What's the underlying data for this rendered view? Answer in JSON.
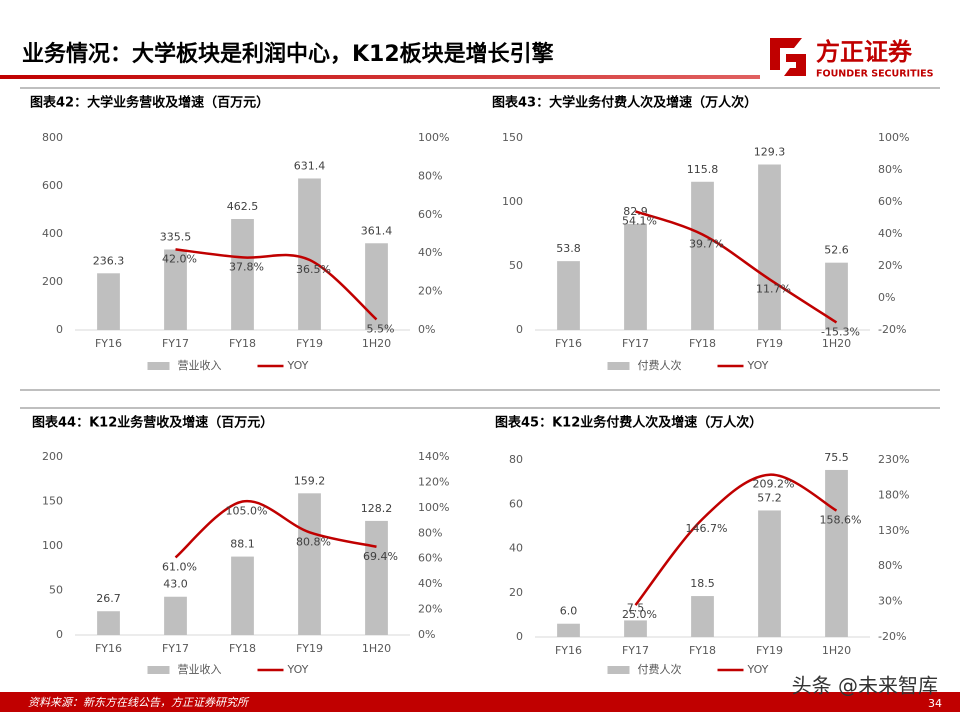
{
  "header": {
    "title": "业务情况：大学板块是利润中心，K12板块是增长引擎",
    "logo_cn": "方正证券",
    "logo_en": "FOUNDER SECURITIES"
  },
  "footer": {
    "source": "资料来源：新东方在线公告，方正证券研究所",
    "page": "34"
  },
  "watermark": "头条 @未来智库",
  "chart_data": [
    {
      "type": "bar",
      "title": "图表42：大学业务营收及增速（百万元）",
      "categories": [
        "FY16",
        "FY17",
        "FY18",
        "FY19",
        "1H20"
      ],
      "series": [
        {
          "name": "营业收入",
          "type": "bar",
          "color": "#bfbfbf",
          "values": [
            236.3,
            335.5,
            462.5,
            631.4,
            361.4
          ]
        },
        {
          "name": "YOY",
          "type": "line",
          "axis": "y2",
          "color": "#c00000",
          "values": [
            null,
            42.0,
            37.8,
            36.5,
            5.5
          ],
          "value_labels": [
            null,
            "42.0%",
            "37.8%",
            "36.5%",
            "5.5%"
          ]
        }
      ],
      "ylim": [
        0,
        800
      ],
      "yticks": [
        0,
        200,
        400,
        600,
        800
      ],
      "y2lim": [
        0,
        100
      ],
      "y2ticks": [
        {
          "value": 0,
          "label": "0%"
        },
        {
          "value": 20,
          "label": "20%"
        },
        {
          "value": 40,
          "label": "40%"
        },
        {
          "value": 60,
          "label": "60%"
        },
        {
          "value": 80,
          "label": "80%"
        },
        {
          "value": 100,
          "label": "100%"
        }
      ],
      "legend": "bottom"
    },
    {
      "type": "bar",
      "title": "图表43：大学业务付费人次及增速（万人次）",
      "categories": [
        "FY16",
        "FY17",
        "FY18",
        "FY19",
        "1H20"
      ],
      "series": [
        {
          "name": "付费人次",
          "type": "bar",
          "color": "#bfbfbf",
          "values": [
            53.8,
            82.9,
            115.8,
            129.3,
            52.6
          ]
        },
        {
          "name": "YOY",
          "type": "line",
          "axis": "y2",
          "color": "#c00000",
          "values": [
            null,
            54.1,
            39.7,
            11.7,
            -15.3
          ],
          "value_labels": [
            null,
            "54.1%",
            "39.7%",
            "11.7%",
            "-15.3%"
          ]
        }
      ],
      "ylim": [
        0,
        150
      ],
      "yticks": [
        0,
        50,
        100,
        150
      ],
      "y2lim": [
        -20,
        100
      ],
      "y2ticks": [
        {
          "value": -20,
          "label": "-20%"
        },
        {
          "value": 0,
          "label": "0%"
        },
        {
          "value": 20,
          "label": "20%"
        },
        {
          "value": 40,
          "label": "40%"
        },
        {
          "value": 60,
          "label": "60%"
        },
        {
          "value": 80,
          "label": "80%"
        },
        {
          "value": 100,
          "label": "100%"
        }
      ],
      "legend": "bottom"
    },
    {
      "type": "bar",
      "title": "图表44：K12业务营收及增速（百万元）",
      "categories": [
        "FY16",
        "FY17",
        "FY18",
        "FY19",
        "1H20"
      ],
      "series": [
        {
          "name": "营业收入",
          "type": "bar",
          "color": "#bfbfbf",
          "values": [
            26.7,
            43.0,
            88.1,
            159.2,
            128.2
          ],
          "value_labels": [
            "26.7",
            "43.0",
            "88.1",
            "159.2",
            "128.2"
          ]
        },
        {
          "name": "YOY",
          "type": "line",
          "axis": "y2",
          "color": "#c00000",
          "values": [
            null,
            61.0,
            105.0,
            80.8,
            69.4
          ],
          "value_labels": [
            null,
            "61.0%",
            "105.0%",
            "80.8%",
            "69.4%"
          ]
        }
      ],
      "ylim": [
        0,
        200
      ],
      "yticks": [
        0,
        50,
        100,
        150,
        200
      ],
      "y2lim": [
        0,
        140
      ],
      "y2ticks": [
        {
          "value": 0,
          "label": "0%"
        },
        {
          "value": 20,
          "label": "20%"
        },
        {
          "value": 40,
          "label": "40%"
        },
        {
          "value": 60,
          "label": "60%"
        },
        {
          "value": 80,
          "label": "80%"
        },
        {
          "value": 100,
          "label": "100%"
        },
        {
          "value": 120,
          "label": "120%"
        },
        {
          "value": 140,
          "label": "140%"
        }
      ],
      "legend": "bottom"
    },
    {
      "type": "bar",
      "title": "图表45：K12业务付费人次及增速（万人次）",
      "categories": [
        "FY16",
        "FY17",
        "FY18",
        "FY19",
        "1H20"
      ],
      "series": [
        {
          "name": "付费人次",
          "type": "bar",
          "color": "#bfbfbf",
          "values": [
            6.0,
            7.5,
            18.5,
            57.2,
            75.5
          ],
          "value_labels": [
            "6.0",
            "7.5",
            "18.5",
            "57.2",
            "75.5"
          ]
        },
        {
          "name": "YOY",
          "type": "line",
          "axis": "y2",
          "color": "#c00000",
          "values": [
            null,
            25.0,
            146.7,
            209.2,
            158.6
          ],
          "value_labels": [
            null,
            "25.0%",
            "146.7%",
            "209.2%",
            "158.6%"
          ]
        }
      ],
      "ylim": [
        0,
        80
      ],
      "yticks": [
        0,
        20,
        40,
        60,
        80
      ],
      "y2lim": [
        -20,
        230
      ],
      "y2ticks": [
        {
          "value": -20,
          "label": "-20%"
        },
        {
          "value": 30,
          "label": "30%"
        },
        {
          "value": 80,
          "label": "80%"
        },
        {
          "value": 130,
          "label": "130%"
        },
        {
          "value": 180,
          "label": "180%"
        },
        {
          "value": 230,
          "label": "230%"
        }
      ],
      "legend": "bottom"
    }
  ]
}
